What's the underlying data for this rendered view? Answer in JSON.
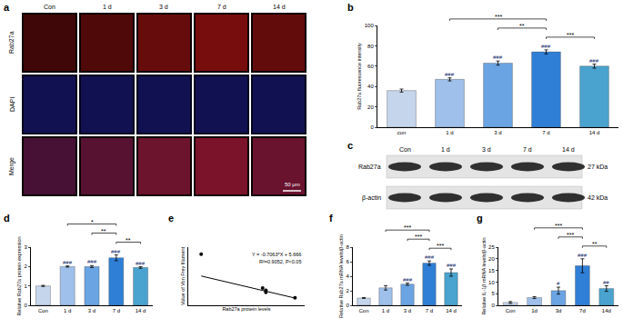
{
  "panel_a": {
    "panel": "a",
    "columns": [
      "Con",
      "1 d",
      "3 d",
      "7 d",
      "14 d"
    ],
    "rows": [
      "Rab27a",
      "DAPI",
      "Merge"
    ],
    "scale_bar": "50 μm"
  },
  "panel_c": {
    "panel": "c",
    "lanes": [
      "Con",
      "1 d",
      "3 d",
      "7 d",
      "14 d"
    ],
    "bands": [
      {
        "name": "Rab27a",
        "size": "27 kDa"
      },
      {
        "name": "β-actin",
        "size": "42 kDa"
      }
    ]
  },
  "chart_data": [
    {
      "panel": "b",
      "type": "bar",
      "y_label": "Rab27a fluorescence intensity",
      "categories": [
        "con",
        "1 d",
        "3 d",
        "7 d",
        "14 d"
      ],
      "values": [
        36,
        47,
        63,
        74,
        60
      ],
      "errors": [
        1.5,
        1.5,
        2,
        2,
        2
      ],
      "colors": [
        "#c5d5ec",
        "#9ec0ea",
        "#6aa4e3",
        "#2f7fd6",
        "#4aa3cf"
      ],
      "ylim": [
        0,
        100
      ],
      "yticks": [
        0,
        20,
        40,
        60,
        80,
        100
      ],
      "grid": false,
      "marks": [
        null,
        "###",
        "###",
        "###",
        "###"
      ],
      "comparisons": [
        {
          "from": "7 d",
          "to": "14 d",
          "label": "***"
        },
        {
          "from": "3 d",
          "to": "7 d",
          "label": "**"
        },
        {
          "from": "1 d",
          "to": "7 d",
          "label": "***"
        }
      ]
    },
    {
      "panel": "d",
      "type": "bar",
      "y_label": "Relative Rab27a protein expression",
      "categories": [
        "Con",
        "1 d",
        "3 d",
        "7 d",
        "14 d"
      ],
      "values": [
        1.0,
        2.0,
        2.0,
        2.45,
        1.95
      ],
      "errors": [
        0.03,
        0.03,
        0.05,
        0.15,
        0.04
      ],
      "colors": [
        "#c5d5ec",
        "#9ec0ea",
        "#6aa4e3",
        "#2f7fd6",
        "#4aa3cf"
      ],
      "ylim": [
        0,
        3
      ],
      "yticks": [
        0,
        1,
        2,
        3
      ],
      "grid": false,
      "marks": [
        null,
        "###",
        "###",
        "###",
        "###"
      ],
      "comparisons": [
        {
          "from": "7 d",
          "to": "14 d",
          "label": "**"
        },
        {
          "from": "3 d",
          "to": "7 d",
          "label": "**"
        },
        {
          "from": "1 d",
          "to": "7 d",
          "label": "*"
        }
      ]
    },
    {
      "panel": "e",
      "type": "scatter",
      "x_label": "Rab27a protein levels",
      "y_label": "Value of Von Frey filament",
      "x": [
        1.0,
        1.95,
        2.0,
        2.0,
        2.45
      ],
      "values": [
        5.97,
        4.4,
        4.2,
        4.3,
        3.95
      ],
      "xlim": [
        0.8,
        2.6
      ],
      "ylim": [
        3.6,
        6.3
      ],
      "tick_labels": false,
      "grid": false,
      "fit": {
        "slope": -0.7063,
        "intercept": 5.666
      },
      "annotations": [
        "Y = -0.7063*X + 5.666",
        "R²=0.9052, P<0.05"
      ]
    },
    {
      "panel": "f",
      "type": "bar",
      "y_label": "Relative Rab27a mRNA levels/β-actin",
      "categories": [
        "Con",
        "1 d",
        "3 d",
        "7 d",
        "14 d"
      ],
      "values": [
        1.0,
        2.4,
        2.9,
        5.8,
        4.5
      ],
      "errors": [
        0.05,
        0.3,
        0.15,
        0.3,
        0.5
      ],
      "colors": [
        "#c5d5ec",
        "#9ec0ea",
        "#6aa4e3",
        "#2f7fd6",
        "#4aa3cf"
      ],
      "ylim": [
        0,
        8
      ],
      "yticks": [
        0,
        2,
        4,
        6,
        8
      ],
      "grid": false,
      "marks": [
        null,
        null,
        "###",
        "###",
        "###"
      ],
      "comparisons": [
        {
          "from": "7 d",
          "to": "14 d",
          "label": "***"
        },
        {
          "from": "3 d",
          "to": "7 d",
          "label": "***"
        },
        {
          "from": "1 d",
          "to": "7 d",
          "label": "***"
        }
      ]
    },
    {
      "panel": "g",
      "type": "bar",
      "y_label": "Relative IL-1β mRNA levels/β-actin",
      "categories": [
        "Con",
        "1d",
        "3d",
        "7d",
        "14d"
      ],
      "values": [
        1.2,
        3.3,
        6.3,
        17,
        7.2
      ],
      "errors": [
        0.4,
        0.4,
        1.5,
        3,
        1.2
      ],
      "colors": [
        "#c5d5ec",
        "#9ec0ea",
        "#6aa4e3",
        "#2f7fd6",
        "#4aa3cf"
      ],
      "ylim": [
        0,
        25
      ],
      "yticks": [
        0,
        5,
        10,
        15,
        20,
        25
      ],
      "grid": false,
      "marks": [
        null,
        null,
        "#",
        "###",
        "##"
      ],
      "comparisons": [
        {
          "from": "7d",
          "to": "14d",
          "label": "**"
        },
        {
          "from": "3d",
          "to": "7d",
          "label": "***"
        },
        {
          "from": "1d",
          "to": "7d",
          "label": "***"
        }
      ]
    }
  ]
}
